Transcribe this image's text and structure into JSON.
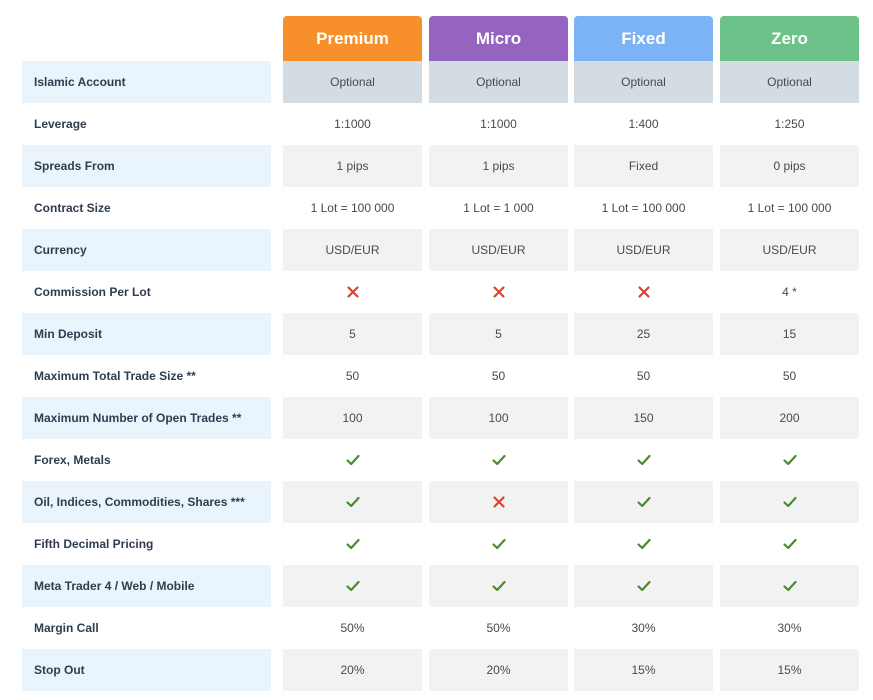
{
  "plans": [
    {
      "name": "Premium",
      "color": "#f7902a"
    },
    {
      "name": "Micro",
      "color": "#9564c1"
    },
    {
      "name": "Fixed",
      "color": "#7bb3f5"
    },
    {
      "name": "Zero",
      "color": "#6cc288"
    }
  ],
  "colors": {
    "check": "#4a8a2c",
    "cross": "#d9442b"
  },
  "rows": [
    {
      "label": "Islamic Account",
      "values": [
        "Optional",
        "Optional",
        "Optional",
        "Optional"
      ]
    },
    {
      "label": "Leverage",
      "values": [
        "1:1000",
        "1:1000",
        "1:400",
        "1:250"
      ]
    },
    {
      "label": "Spreads From",
      "values": [
        "1 pips",
        "1 pips",
        "Fixed",
        "0 pips"
      ]
    },
    {
      "label": "Contract Size",
      "values": [
        "1 Lot = 100 000",
        "1 Lot = 1 000",
        "1 Lot = 100 000",
        "1 Lot = 100 000"
      ]
    },
    {
      "label": "Currency",
      "values": [
        "USD/EUR",
        "USD/EUR",
        "USD/EUR",
        "USD/EUR"
      ]
    },
    {
      "label": "Commission Per Lot",
      "values": [
        "cross-icon",
        "cross-icon",
        "cross-icon",
        "4 *"
      ]
    },
    {
      "label": "Min Deposit",
      "values": [
        "5",
        "5",
        "25",
        "15"
      ]
    },
    {
      "label": "Maximum Total Trade Size **",
      "values": [
        "50",
        "50",
        "50",
        "50"
      ]
    },
    {
      "label": "Maximum Number of Open Trades **",
      "values": [
        "100",
        "100",
        "150",
        "200"
      ]
    },
    {
      "label": "Forex, Metals",
      "values": [
        "check-icon",
        "check-icon",
        "check-icon",
        "check-icon"
      ]
    },
    {
      "label": "Oil, Indices, Commodities, Shares ***",
      "values": [
        "check-icon",
        "cross-icon",
        "check-icon",
        "check-icon"
      ]
    },
    {
      "label": "Fifth Decimal Pricing",
      "values": [
        "check-icon",
        "check-icon",
        "check-icon",
        "check-icon"
      ]
    },
    {
      "label": "Meta Trader 4 / Web / Mobile",
      "values": [
        "check-icon",
        "check-icon",
        "check-icon",
        "check-icon"
      ]
    },
    {
      "label": "Margin Call",
      "values": [
        "50%",
        "50%",
        "30%",
        "30%"
      ]
    },
    {
      "label": "Stop Out",
      "values": [
        "20%",
        "20%",
        "15%",
        "15%"
      ]
    }
  ]
}
